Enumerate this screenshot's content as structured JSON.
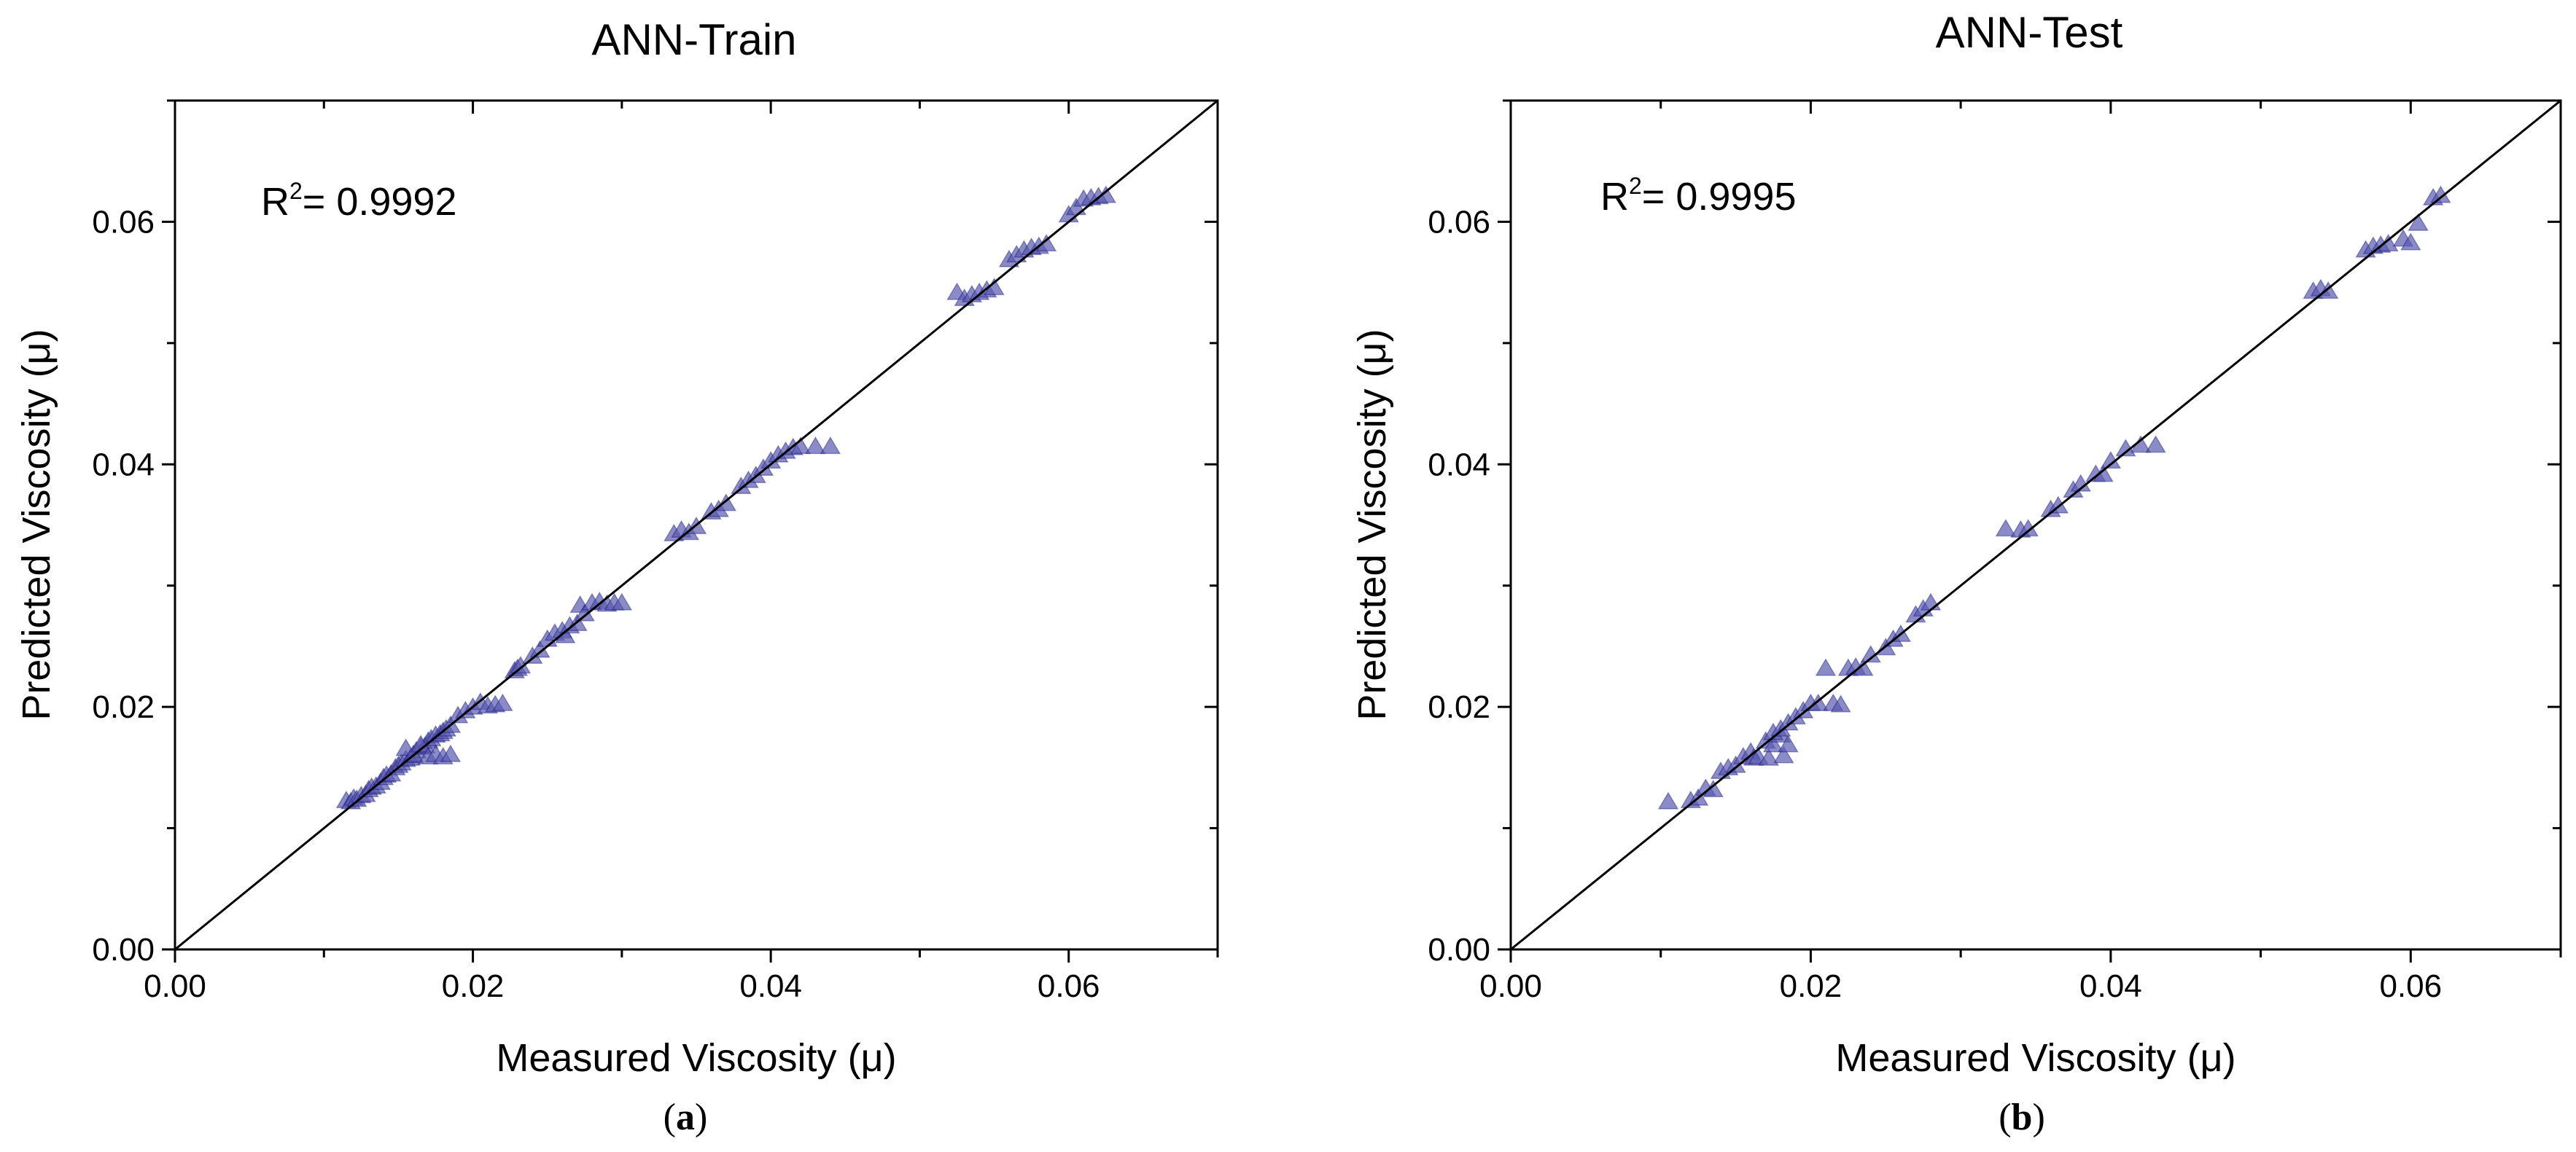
{
  "chart_data": [
    {
      "type": "scatter",
      "title": "ANN-Train",
      "xlabel": "Measured Viscosity (μ)",
      "ylabel": "Predicted Viscosity (μ)",
      "xlim": [
        0,
        0.07
      ],
      "ylim": [
        0,
        0.07
      ],
      "xticks": [
        "0.00",
        "0.02",
        "0.04",
        "0.06"
      ],
      "yticks": [
        "0.00",
        "0.02",
        "0.04",
        "0.06"
      ],
      "tick_values": [
        0,
        0.02,
        0.04,
        0.06
      ],
      "r2_prefix": "R",
      "r2_sup": "2",
      "r2_value": "= 0.9992",
      "caption_open": "(",
      "caption_letter": "a",
      "caption_close": ")",
      "marker": "triangle",
      "marker_color": "#5a5ab0",
      "edge_color": "#000066",
      "reference_line": "y = x",
      "series": [
        {
          "name": "Train",
          "x": [
            0.0115,
            0.0118,
            0.012,
            0.0122,
            0.0125,
            0.0128,
            0.013,
            0.0132,
            0.0135,
            0.0138,
            0.014,
            0.0142,
            0.0145,
            0.0148,
            0.015,
            0.0152,
            0.0155,
            0.0158,
            0.016,
            0.0162,
            0.0165,
            0.0168,
            0.017,
            0.0172,
            0.0175,
            0.0178,
            0.018,
            0.0182,
            0.0185,
            0.0155,
            0.016,
            0.0165,
            0.017,
            0.0175,
            0.018,
            0.0185,
            0.019,
            0.0195,
            0.02,
            0.0205,
            0.021,
            0.0215,
            0.022,
            0.0228,
            0.023,
            0.0232,
            0.024,
            0.0245,
            0.025,
            0.0255,
            0.026,
            0.0262,
            0.0265,
            0.027,
            0.0272,
            0.0275,
            0.028,
            0.0285,
            0.029,
            0.0295,
            0.03,
            0.0335,
            0.034,
            0.0345,
            0.035,
            0.036,
            0.0365,
            0.037,
            0.038,
            0.0385,
            0.039,
            0.0395,
            0.04,
            0.0405,
            0.041,
            0.0415,
            0.042,
            0.043,
            0.044,
            0.0525,
            0.053,
            0.0535,
            0.054,
            0.0545,
            0.055,
            0.056,
            0.0565,
            0.057,
            0.0575,
            0.058,
            0.0585,
            0.06,
            0.0605,
            0.061,
            0.0615,
            0.062,
            0.0625
          ],
          "y": [
            0.0122,
            0.0121,
            0.0124,
            0.0123,
            0.0126,
            0.0127,
            0.0131,
            0.0133,
            0.0134,
            0.0137,
            0.0141,
            0.0143,
            0.0144,
            0.0149,
            0.0151,
            0.0153,
            0.0156,
            0.0157,
            0.0159,
            0.0163,
            0.0166,
            0.0167,
            0.0171,
            0.0173,
            0.0176,
            0.0177,
            0.0179,
            0.0181,
            0.0184,
            0.0165,
            0.016,
            0.0168,
            0.0158,
            0.016,
            0.0158,
            0.016,
            0.0192,
            0.0196,
            0.0199,
            0.0203,
            0.02,
            0.0201,
            0.0202,
            0.0229,
            0.0231,
            0.0233,
            0.0241,
            0.0246,
            0.0255,
            0.026,
            0.0262,
            0.0258,
            0.0266,
            0.0268,
            0.0283,
            0.0276,
            0.0285,
            0.0286,
            0.0284,
            0.0285,
            0.0285,
            0.0342,
            0.0345,
            0.0343,
            0.0348,
            0.036,
            0.0362,
            0.0367,
            0.0381,
            0.0386,
            0.039,
            0.0396,
            0.0402,
            0.0407,
            0.041,
            0.0413,
            0.0414,
            0.0414,
            0.0414,
            0.0541,
            0.0536,
            0.0539,
            0.0541,
            0.0543,
            0.0545,
            0.0568,
            0.0572,
            0.0576,
            0.0578,
            0.0579,
            0.0581,
            0.0605,
            0.0611,
            0.0618,
            0.0619,
            0.062,
            0.0621
          ]
        }
      ]
    },
    {
      "type": "scatter",
      "title": "ANN-Test",
      "xlabel": "Measured Viscosity (μ)",
      "ylabel": "Predicted Viscosity (μ)",
      "xlim": [
        0,
        0.07
      ],
      "ylim": [
        0,
        0.07
      ],
      "xticks": [
        "0.00",
        "0.02",
        "0.04",
        "0.06"
      ],
      "yticks": [
        "0.00",
        "0.02",
        "0.04",
        "0.06"
      ],
      "tick_values": [
        0,
        0.02,
        0.04,
        0.06
      ],
      "r2_prefix": "R",
      "r2_sup": "2",
      "r2_value": "= 0.9995",
      "caption_open": "(",
      "caption_letter": "b",
      "caption_close": ")",
      "marker": "triangle",
      "marker_color": "#5a5ab0",
      "edge_color": "#000066",
      "reference_line": "y = x",
      "series": [
        {
          "name": "Test",
          "x": [
            0.0105,
            0.012,
            0.0125,
            0.013,
            0.0135,
            0.014,
            0.0145,
            0.015,
            0.0155,
            0.016,
            0.0162,
            0.0165,
            0.017,
            0.0172,
            0.0175,
            0.018,
            0.0182,
            0.0185,
            0.0175,
            0.018,
            0.0185,
            0.019,
            0.0195,
            0.02,
            0.0205,
            0.021,
            0.0215,
            0.022,
            0.0225,
            0.023,
            0.0235,
            0.024,
            0.025,
            0.0255,
            0.026,
            0.027,
            0.0275,
            0.028,
            0.033,
            0.034,
            0.0345,
            0.036,
            0.0365,
            0.0375,
            0.038,
            0.039,
            0.0395,
            0.04,
            0.041,
            0.042,
            0.043,
            0.0535,
            0.054,
            0.0545,
            0.057,
            0.0575,
            0.058,
            0.0585,
            0.0595,
            0.06,
            0.0605,
            0.0615,
            0.062
          ],
          "y": [
            0.0121,
            0.0122,
            0.0124,
            0.0132,
            0.0131,
            0.0146,
            0.0149,
            0.0151,
            0.0158,
            0.0162,
            0.0157,
            0.0158,
            0.0171,
            0.0157,
            0.0168,
            0.0176,
            0.0159,
            0.0168,
            0.0178,
            0.0181,
            0.0186,
            0.0191,
            0.0196,
            0.0202,
            0.0202,
            0.0231,
            0.0202,
            0.0201,
            0.0231,
            0.0232,
            0.0231,
            0.0242,
            0.0248,
            0.0255,
            0.0259,
            0.0275,
            0.028,
            0.0285,
            0.0346,
            0.0345,
            0.0346,
            0.0362,
            0.0365,
            0.0378,
            0.0383,
            0.0391,
            0.0391,
            0.0402,
            0.0412,
            0.0415,
            0.0415,
            0.0542,
            0.0544,
            0.0542,
            0.0576,
            0.0579,
            0.058,
            0.0581,
            0.0585,
            0.0582,
            0.0598,
            0.0619,
            0.0621
          ]
        }
      ]
    }
  ]
}
